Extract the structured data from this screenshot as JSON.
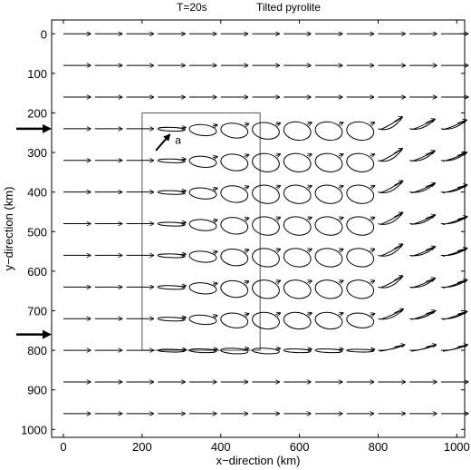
{
  "chart_data": {
    "type": "vector-field",
    "title_left": "T=20s",
    "title_right": "Tilted pyrolite",
    "xlabel": "x−direction (km)",
    "ylabel": "y−direction (km)",
    "xlim": [
      -30,
      1020
    ],
    "ylim": [
      1020,
      -35
    ],
    "x_ticks": [
      0,
      200,
      400,
      600,
      800,
      1000
    ],
    "y_ticks": [
      0,
      100,
      200,
      300,
      400,
      500,
      600,
      700,
      800,
      900,
      1000
    ],
    "y_reversed": true,
    "grid": false,
    "columns_x": [
      0,
      80,
      160,
      240,
      320,
      400,
      480,
      560,
      640,
      720,
      800,
      880,
      960
    ],
    "rows_y": [
      0,
      80,
      160,
      240,
      320,
      400,
      480,
      560,
      640,
      720,
      800,
      880,
      960
    ],
    "region_box": {
      "x": [
        200,
        500
      ],
      "y": [
        200,
        800
      ]
    },
    "annotation": {
      "text": "a",
      "arrow_from": [
        235,
        295
      ],
      "arrow_to": [
        270,
        255
      ]
    },
    "source_arrows_y": [
      240,
      760
    ],
    "particle_motion": {
      "description_rows": [
        [
          0,
          0,
          0,
          0,
          0,
          0,
          0,
          0,
          0,
          0,
          0,
          0,
          0
        ],
        [
          0,
          0,
          0,
          0,
          0,
          0,
          0,
          0,
          0,
          0,
          0,
          0,
          0
        ],
        [
          0,
          0,
          0,
          0,
          0,
          0,
          0,
          0,
          0,
          0,
          0,
          0,
          0
        ],
        [
          0,
          0,
          0,
          0.2,
          0.6,
          0.8,
          0.9,
          1,
          1,
          1,
          0.9,
          0.6,
          0.5
        ],
        [
          0,
          0,
          0,
          0.2,
          0.6,
          0.9,
          1,
          1,
          1,
          1,
          0.9,
          0.6,
          0.4
        ],
        [
          0,
          0,
          0,
          0.2,
          0.6,
          0.9,
          1,
          1,
          1,
          1,
          0.8,
          0.5,
          0.3
        ],
        [
          0,
          0,
          0,
          0.2,
          0.6,
          0.9,
          1,
          1,
          1,
          1,
          0.8,
          0.5,
          0.3
        ],
        [
          0,
          0,
          0,
          0.2,
          0.6,
          0.9,
          1,
          1,
          1,
          1,
          0.8,
          0.5,
          0.3
        ],
        [
          0,
          0,
          0,
          0.2,
          0.6,
          0.9,
          1,
          1,
          1,
          1,
          0.8,
          0.5,
          0.3
        ],
        [
          0,
          0,
          0,
          0.2,
          0.5,
          0.8,
          0.9,
          0.9,
          0.9,
          0.8,
          0.6,
          0.4,
          0.3
        ],
        [
          0,
          0,
          0,
          0.1,
          0.2,
          0.3,
          0.3,
          0.2,
          0.2,
          0.1,
          0.1,
          0.1,
          0.1
        ],
        [
          0,
          0,
          0,
          0,
          0,
          0,
          0,
          0,
          0,
          0,
          0,
          0,
          0
        ],
        [
          0,
          0,
          0,
          0,
          0,
          0,
          0,
          0,
          0,
          0,
          0,
          0,
          0
        ]
      ]
    }
  }
}
